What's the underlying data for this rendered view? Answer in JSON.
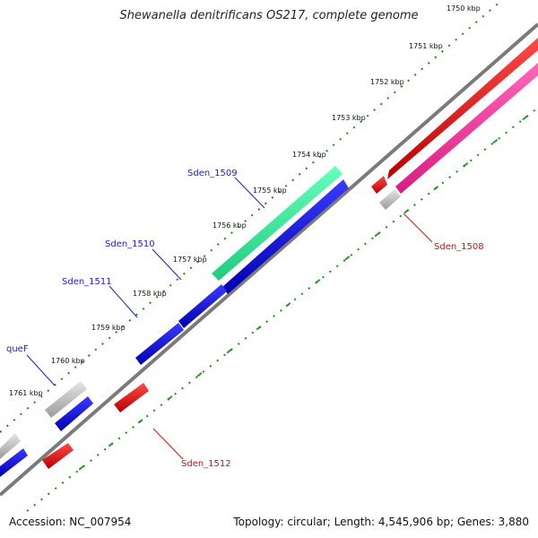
{
  "title": "Shewanella denitrificans OS217, complete genome",
  "footer": {
    "accession": "Accession: NC_007954",
    "summary": "Topology: circular; Length: 4,545,906 bp; Genes: 3,880"
  },
  "scale_labels": [
    "1750 kbp",
    "1751 kbp",
    "1752 kbp",
    "1753 kbp",
    "1754 kbp",
    "1755 kbp",
    "1756 kbp",
    "1757 kbp",
    "1758 kbp",
    "1759 kbp",
    "1760 kbp",
    "1761 kbp"
  ],
  "gene_labels": [
    {
      "text": "Sden_1509",
      "color": "#1b1bd6"
    },
    {
      "text": "Sden_1510",
      "color": "#1b1bd6"
    },
    {
      "text": "Sden_1511",
      "color": "#1b1bd6"
    },
    {
      "text": "queF",
      "color": "#1b1bd6"
    },
    {
      "text": "Sden_1508",
      "color": "#d01010"
    },
    {
      "text": "Sden_1512",
      "color": "#d01010"
    }
  ],
  "colors": {
    "backbone": "#808080",
    "forward_gene": "#1010e0",
    "reverse_gene": "#e00000",
    "rna_gene": "#b8b8b8",
    "highlight_feature": "#33ee99",
    "pink_feature": "#ff3399",
    "scale_dots": "#1a8c1a"
  }
}
